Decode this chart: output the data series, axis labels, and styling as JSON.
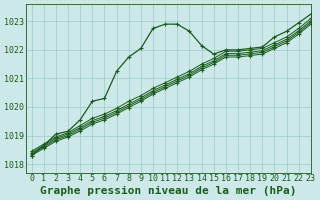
{
  "title": "Graphe pression niveau de la mer (hPa)",
  "bg_color": "#cce8e8",
  "grid_color": "#99cccc",
  "line_color": "#1a5c1a",
  "xlim": [
    -0.5,
    23
  ],
  "ylim": [
    1017.7,
    1023.6
  ],
  "yticks": [
    1018,
    1019,
    1020,
    1021,
    1022,
    1023
  ],
  "xtick_labels": [
    "0",
    "1",
    "2",
    "3",
    "4",
    "5",
    "6",
    "7",
    "8",
    "9",
    "10",
    "11",
    "12",
    "13",
    "14",
    "15",
    "16",
    "17",
    "18",
    "19",
    "20",
    "21",
    "22",
    "23"
  ],
  "series": [
    [
      1018.3,
      1018.65,
      1019.05,
      1019.15,
      1019.55,
      1020.2,
      1020.3,
      1021.25,
      1021.75,
      1022.05,
      1022.75,
      1022.9,
      1022.9,
      1022.65,
      1022.15,
      1021.85,
      1022.0,
      1022.0,
      1022.05,
      1022.1,
      1022.45,
      1022.65,
      1022.95,
      1023.25
    ],
    [
      1018.45,
      1018.7,
      1018.95,
      1019.1,
      1019.35,
      1019.6,
      1019.75,
      1019.95,
      1020.2,
      1020.4,
      1020.65,
      1020.85,
      1021.05,
      1021.25,
      1021.5,
      1021.7,
      1021.95,
      1021.95,
      1022.0,
      1022.05,
      1022.25,
      1022.45,
      1022.75,
      1023.1
    ],
    [
      1018.4,
      1018.65,
      1018.9,
      1019.05,
      1019.28,
      1019.52,
      1019.67,
      1019.87,
      1020.1,
      1020.32,
      1020.57,
      1020.77,
      1020.97,
      1021.17,
      1021.42,
      1021.62,
      1021.87,
      1021.87,
      1021.92,
      1021.97,
      1022.17,
      1022.37,
      1022.67,
      1023.02
    ],
    [
      1018.35,
      1018.6,
      1018.85,
      1019.0,
      1019.22,
      1019.46,
      1019.61,
      1019.81,
      1020.04,
      1020.26,
      1020.51,
      1020.71,
      1020.91,
      1021.11,
      1021.36,
      1021.56,
      1021.81,
      1021.81,
      1021.86,
      1021.91,
      1022.11,
      1022.31,
      1022.61,
      1022.96
    ],
    [
      1018.3,
      1018.55,
      1018.8,
      1018.95,
      1019.16,
      1019.4,
      1019.55,
      1019.75,
      1019.98,
      1020.2,
      1020.45,
      1020.65,
      1020.85,
      1021.05,
      1021.3,
      1021.5,
      1021.75,
      1021.75,
      1021.8,
      1021.85,
      1022.05,
      1022.25,
      1022.55,
      1022.9
    ]
  ],
  "title_fontsize": 8,
  "tick_fontsize": 6
}
